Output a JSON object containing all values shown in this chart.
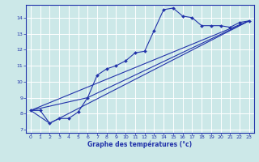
{
  "title": "",
  "xlabel": "Graphe des températures (°c)",
  "ylabel": "",
  "bg_color": "#cce8e8",
  "grid_color": "#ffffff",
  "line_color": "#2233aa",
  "xlim": [
    -0.5,
    23.5
  ],
  "ylim": [
    6.8,
    14.8
  ],
  "yticks": [
    7,
    8,
    9,
    10,
    11,
    12,
    13,
    14
  ],
  "xticks": [
    0,
    1,
    2,
    3,
    4,
    5,
    6,
    7,
    8,
    9,
    10,
    11,
    12,
    13,
    14,
    15,
    16,
    17,
    18,
    19,
    20,
    21,
    22,
    23
  ],
  "curve1_x": [
    0,
    1,
    2,
    3,
    4,
    5,
    6,
    7,
    8,
    9,
    10,
    11,
    12,
    13,
    14,
    15,
    16,
    17,
    18,
    19,
    20,
    21,
    22,
    23
  ],
  "curve1_y": [
    8.2,
    8.2,
    7.4,
    7.7,
    7.7,
    8.1,
    9.0,
    10.4,
    10.8,
    11.0,
    11.3,
    11.8,
    11.9,
    13.2,
    14.5,
    14.6,
    14.1,
    14.0,
    13.5,
    13.5,
    13.5,
    13.4,
    13.7,
    13.8
  ],
  "trend1_x": [
    0,
    23
  ],
  "trend1_y": [
    8.2,
    13.8
  ],
  "trend2_x": [
    0,
    2,
    23
  ],
  "trend2_y": [
    8.2,
    7.4,
    13.8
  ],
  "trend3_x": [
    0,
    6,
    23
  ],
  "trend3_y": [
    8.2,
    9.0,
    13.8
  ],
  "marker_x": [
    0,
    1,
    2,
    3,
    4,
    5,
    6,
    7,
    8,
    9,
    10,
    11,
    12,
    13,
    14,
    15,
    16,
    17,
    18,
    19,
    20,
    21,
    22,
    23
  ],
  "marker_y": [
    8.2,
    8.2,
    7.4,
    7.7,
    7.7,
    8.1,
    9.0,
    10.4,
    10.8,
    11.0,
    11.3,
    11.8,
    11.9,
    13.2,
    14.5,
    14.6,
    14.1,
    14.0,
    13.5,
    13.5,
    13.5,
    13.4,
    13.7,
    13.8
  ]
}
